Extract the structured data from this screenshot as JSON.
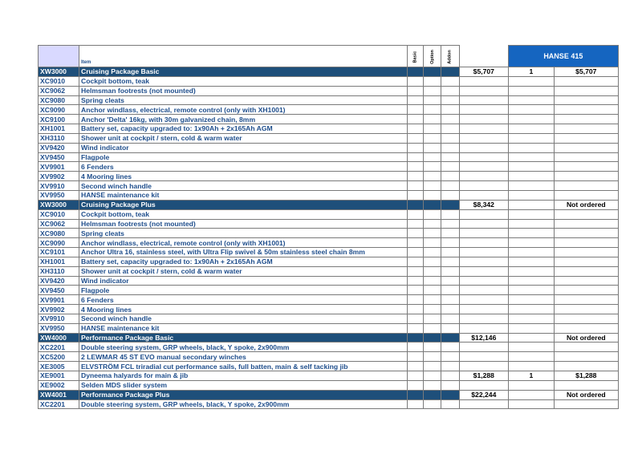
{
  "header": {
    "item_label": "Item",
    "basic_label": "Basic",
    "option_label": "Option",
    "addon_label": "Addon",
    "model": "HANSE 415"
  },
  "colors": {
    "package_row": "#1e4f7a",
    "model_header": "#1565c0",
    "text": "#1f4e8c"
  },
  "rows": [
    {
      "code": "XW3000",
      "desc": "Cruising Package Basic",
      "price": "$5,707",
      "qty": "1",
      "total": "$5,707",
      "pkg": true
    },
    {
      "code": "XC9010",
      "desc": "Cockpit bottom, teak",
      "price": "",
      "qty": "",
      "total": ""
    },
    {
      "code": "XC9062",
      "desc": "Helmsman footrests (not mounted)",
      "price": "",
      "qty": "",
      "total": ""
    },
    {
      "code": "XC9080",
      "desc": "Spring cleats",
      "price": "",
      "qty": "",
      "total": ""
    },
    {
      "code": "XC9090",
      "desc": "Anchor windlass, electrical, remote control (only with XH1001)",
      "price": "",
      "qty": "",
      "total": ""
    },
    {
      "code": "XC9100",
      "desc": "Anchor 'Delta' 16kg, with 30m galvanized chain, 8mm",
      "price": "",
      "qty": "",
      "total": ""
    },
    {
      "code": "XH1001",
      "desc": "Battery set, capacity upgraded to: 1x90Ah + 2x165Ah AGM",
      "price": "",
      "qty": "",
      "total": ""
    },
    {
      "code": "XH3110",
      "desc": "Shower unit at cockpit / stern, cold & warm water",
      "price": "",
      "qty": "",
      "total": ""
    },
    {
      "code": "XV9420",
      "desc": "Wind indicator",
      "price": "",
      "qty": "",
      "total": ""
    },
    {
      "code": "XV9450",
      "desc": "Flagpole",
      "price": "",
      "qty": "",
      "total": ""
    },
    {
      "code": "XV9901",
      "desc": "6 Fenders",
      "price": "",
      "qty": "",
      "total": ""
    },
    {
      "code": "XV9902",
      "desc": "4 Mooring lines",
      "price": "",
      "qty": "",
      "total": ""
    },
    {
      "code": "XV9910",
      "desc": "Second winch handle",
      "price": "",
      "qty": "",
      "total": ""
    },
    {
      "code": "XV9950",
      "desc": "HANSE maintenance kit",
      "price": "",
      "qty": "",
      "total": ""
    },
    {
      "code": "XW3000",
      "desc": "Cruising Package Plus",
      "price": "$8,342",
      "qty": "",
      "total": "Not ordered",
      "pkg": true
    },
    {
      "code": "XC9010",
      "desc": "Cockpit bottom, teak",
      "price": "",
      "qty": "",
      "total": ""
    },
    {
      "code": "XC9062",
      "desc": "Helmsman footrests (not mounted)",
      "price": "",
      "qty": "",
      "total": ""
    },
    {
      "code": "XC9080",
      "desc": "Spring cleats",
      "price": "",
      "qty": "",
      "total": ""
    },
    {
      "code": "XC9090",
      "desc": "Anchor windlass, electrical, remote control (only with XH1001)",
      "price": "",
      "qty": "",
      "total": ""
    },
    {
      "code": "XC9101",
      "desc": "Anchor Ultra 16, stainless steel, with Ultra Flip swivel & 50m stainless steel chain 8mm",
      "price": "",
      "qty": "",
      "total": ""
    },
    {
      "code": "XH1001",
      "desc": "Battery set, capacity upgraded to: 1x90Ah + 2x165Ah AGM",
      "price": "",
      "qty": "",
      "total": ""
    },
    {
      "code": "XH3110",
      "desc": "Shower unit at cockpit / stern, cold & warm water",
      "price": "",
      "qty": "",
      "total": ""
    },
    {
      "code": "XV9420",
      "desc": "Wind indicator",
      "price": "",
      "qty": "",
      "total": ""
    },
    {
      "code": "XV9450",
      "desc": "Flagpole",
      "price": "",
      "qty": "",
      "total": ""
    },
    {
      "code": "XV9901",
      "desc": "6 Fenders",
      "price": "",
      "qty": "",
      "total": ""
    },
    {
      "code": "XV9902",
      "desc": "4 Mooring lines",
      "price": "",
      "qty": "",
      "total": ""
    },
    {
      "code": "XV9910",
      "desc": "Second winch handle",
      "price": "",
      "qty": "",
      "total": ""
    },
    {
      "code": "XV9950",
      "desc": "HANSE maintenance kit",
      "price": "",
      "qty": "",
      "total": ""
    },
    {
      "code": "XW4000",
      "desc": "Performance Package Basic",
      "price": "$12,146",
      "qty": "",
      "total": "Not ordered",
      "pkg": true
    },
    {
      "code": "XC2201",
      "desc": "Double steering system, GRP wheels, black, Y spoke, 2x900mm",
      "price": "",
      "qty": "",
      "total": ""
    },
    {
      "code": "XC5200",
      "desc": "2 LEWMAR 45 ST EVO manual secondary winches",
      "price": "",
      "qty": "",
      "total": ""
    },
    {
      "code": "XE3005",
      "desc": "ELVSTRÖM FCL triradial cut performance sails, full batten, main & self tacking jib",
      "price": "",
      "qty": "",
      "total": ""
    },
    {
      "code": "XE9001",
      "desc": "Dyneema halyards for main & jib",
      "price": "$1,288",
      "qty": "1",
      "total": "$1,288"
    },
    {
      "code": "XE9002",
      "desc": "Selden MDS slider system",
      "price": "",
      "qty": "",
      "total": ""
    },
    {
      "code": "XW4001",
      "desc": "Performance Package Plus",
      "price": "$22,244",
      "qty": "",
      "total": "Not ordered",
      "pkg": true
    },
    {
      "code": "XC2201",
      "desc": "Double steering system, GRP wheels, black, Y spoke, 2x900mm",
      "price": "",
      "qty": "",
      "total": ""
    }
  ]
}
